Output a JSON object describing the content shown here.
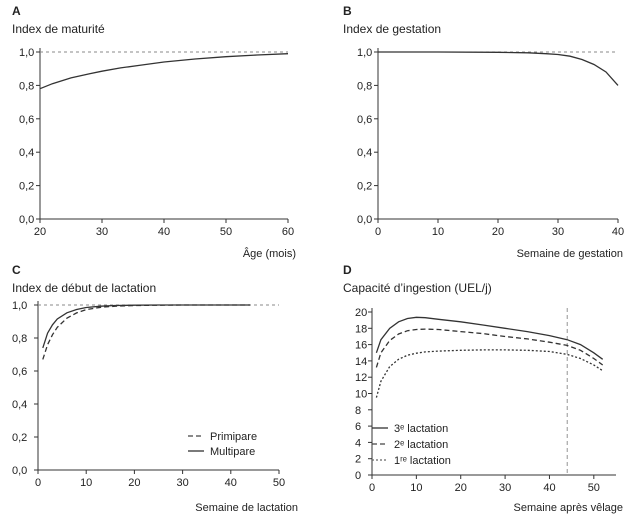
{
  "chart_data": [
    {
      "type": "line",
      "letter": "A",
      "title": "Index de maturité",
      "xlabel": "Âge (mois)",
      "ylabel": "",
      "xlim": [
        20,
        60
      ],
      "ylim": [
        0,
        1.0
      ],
      "xticks": [
        20,
        30,
        40,
        50,
        60
      ],
      "xtick_labels": [
        "20",
        "30",
        "40",
        "50",
        "60"
      ],
      "yticks": [
        0,
        0.2,
        0.4,
        0.6,
        0.8,
        1.0
      ],
      "ytick_labels": [
        "0,0",
        "0,2",
        "0,4",
        "0,6",
        "0,8",
        "1,0"
      ],
      "reference_line": {
        "y": 1.0,
        "style": "dashed"
      },
      "series": [
        {
          "style": "solid",
          "x": [
            20,
            22,
            25,
            28,
            30,
            33,
            36,
            40,
            45,
            50,
            55,
            60
          ],
          "y": [
            0.78,
            0.81,
            0.845,
            0.87,
            0.885,
            0.905,
            0.92,
            0.94,
            0.958,
            0.972,
            0.982,
            0.99
          ]
        }
      ]
    },
    {
      "type": "line",
      "letter": "B",
      "title": "Index de gestation",
      "xlabel": "Semaine de gestation",
      "ylabel": "",
      "xlim": [
        0,
        40
      ],
      "ylim": [
        0,
        1.0
      ],
      "xticks": [
        0,
        10,
        20,
        30,
        40
      ],
      "xtick_labels": [
        "0",
        "10",
        "20",
        "30",
        "40"
      ],
      "yticks": [
        0,
        0.2,
        0.4,
        0.6,
        0.8,
        1.0
      ],
      "ytick_labels": [
        "0,0",
        "0,2",
        "0,4",
        "0,6",
        "0,8",
        "1,0"
      ],
      "reference_line": {
        "y": 1.0,
        "style": "dashed"
      },
      "series": [
        {
          "style": "solid",
          "x": [
            0,
            10,
            20,
            25,
            28,
            30,
            32,
            34,
            36,
            38,
            40
          ],
          "y": [
            1.0,
            1.0,
            0.998,
            0.995,
            0.99,
            0.985,
            0.975,
            0.955,
            0.925,
            0.88,
            0.8
          ]
        }
      ]
    },
    {
      "type": "line",
      "letter": "C",
      "title": "Index de début de lactation",
      "xlabel": "Semaine de lactation",
      "ylabel": "",
      "xlim": [
        0,
        50
      ],
      "ylim": [
        0,
        1.0
      ],
      "xticks": [
        0,
        10,
        20,
        30,
        40,
        50
      ],
      "xtick_labels": [
        "0",
        "10",
        "20",
        "30",
        "40",
        "50"
      ],
      "yticks": [
        0,
        0.2,
        0.4,
        0.6,
        0.8,
        1.0
      ],
      "ytick_labels": [
        "0,0",
        "0,2",
        "0,4",
        "0,6",
        "0,8",
        "1,0"
      ],
      "reference_line": {
        "y": 1.0,
        "style": "dashed"
      },
      "legend": {
        "placement": "bottom-right",
        "entries": [
          {
            "name": "Primipare",
            "style": "dashed"
          },
          {
            "name": "Multipare",
            "style": "solid"
          }
        ]
      },
      "series": [
        {
          "name": "Primipare",
          "style": "dashed",
          "x": [
            1,
            2,
            3,
            4,
            6,
            8,
            10,
            13,
            16,
            20,
            25,
            30,
            40,
            44
          ],
          "y": [
            0.67,
            0.76,
            0.82,
            0.865,
            0.92,
            0.952,
            0.972,
            0.986,
            0.993,
            0.997,
            0.999,
            1.0,
            1.0,
            1.0
          ]
        },
        {
          "name": "Multipare",
          "style": "solid",
          "x": [
            1,
            2,
            3,
            4,
            6,
            8,
            10,
            13,
            16,
            20,
            25,
            30,
            40,
            44
          ],
          "y": [
            0.74,
            0.83,
            0.88,
            0.915,
            0.953,
            0.973,
            0.985,
            0.993,
            0.997,
            0.999,
            1.0,
            1.0,
            1.0,
            1.0
          ]
        }
      ]
    },
    {
      "type": "line",
      "letter": "D",
      "title": "Capacité d’ingestion (UEL/j)",
      "xlabel": "Semaine après vêlage",
      "ylabel": "",
      "xlim": [
        0,
        55
      ],
      "ylim": [
        0,
        20
      ],
      "xticks": [
        0,
        10,
        20,
        30,
        40,
        50
      ],
      "xtick_labels": [
        "0",
        "10",
        "20",
        "30",
        "40",
        "50"
      ],
      "yticks": [
        0,
        2,
        4,
        6,
        8,
        10,
        12,
        14,
        16,
        18,
        20
      ],
      "ytick_labels": [
        "0",
        "2",
        "4",
        "6",
        "8",
        "10",
        "12",
        "14",
        "16",
        "18",
        "20"
      ],
      "vertical_line": {
        "x": 44,
        "style": "dashed"
      },
      "legend": {
        "placement": "bottom-left",
        "entries": [
          {
            "name": "3ᵉ lactation",
            "style": "solid"
          },
          {
            "name": "2ᵉ lactation",
            "style": "dashed"
          },
          {
            "name": "1ʳᵉ lactation",
            "style": "dotted"
          }
        ]
      },
      "series": [
        {
          "name": "3ᵉ lactation",
          "style": "solid",
          "x": [
            1,
            2,
            4,
            6,
            8,
            10,
            12,
            15,
            20,
            25,
            30,
            35,
            40,
            44,
            47,
            50,
            52
          ],
          "y": [
            15.0,
            16.6,
            18.0,
            18.8,
            19.2,
            19.35,
            19.3,
            19.1,
            18.8,
            18.4,
            18.0,
            17.6,
            17.1,
            16.6,
            16.0,
            15.0,
            14.2
          ]
        },
        {
          "name": "2ᵉ lactation",
          "style": "dashed",
          "x": [
            1,
            2,
            4,
            6,
            8,
            10,
            12,
            15,
            20,
            25,
            30,
            35,
            40,
            44,
            47,
            50,
            52
          ],
          "y": [
            13.2,
            15.0,
            16.5,
            17.3,
            17.7,
            17.85,
            17.9,
            17.85,
            17.6,
            17.35,
            17.0,
            16.7,
            16.3,
            15.9,
            15.3,
            14.3,
            13.5
          ]
        },
        {
          "name": "1ʳᵉ lactation",
          "style": "dotted",
          "x": [
            1,
            2,
            4,
            6,
            8,
            10,
            12,
            15,
            20,
            25,
            30,
            35,
            40,
            44,
            47,
            50,
            52
          ],
          "y": [
            9.5,
            11.5,
            13.3,
            14.2,
            14.7,
            14.95,
            15.1,
            15.2,
            15.3,
            15.35,
            15.35,
            15.3,
            15.15,
            14.8,
            14.3,
            13.5,
            12.8
          ]
        }
      ]
    }
  ]
}
